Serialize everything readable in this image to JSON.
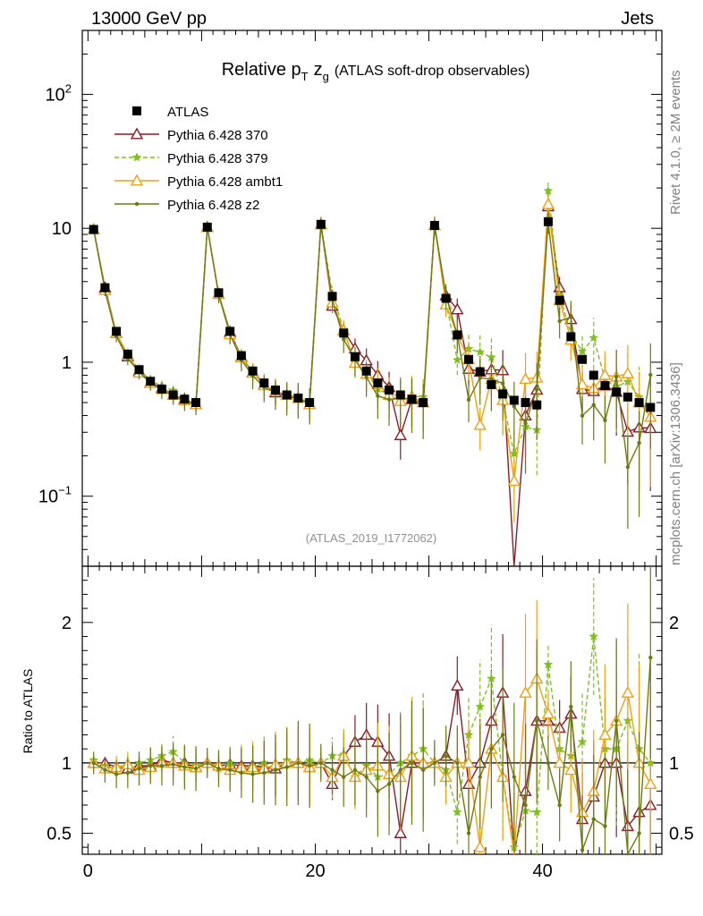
{
  "header": {
    "energy_label": "13000 GeV pp",
    "process_label": "Jets",
    "side_label_top": "Rivet 4.1.0, ≥ 2M events",
    "side_label_bottom": "mcplots.cern.ch [arXiv:1306.3436]"
  },
  "chart_data": {
    "type": "line",
    "title": "Relative p",
    "title_sub_T": "T",
    "title_z": "z",
    "title_sub_g": "g",
    "title_suffix": "(ATLAS soft-drop observables)",
    "analysis_id": "(ATLAS_2019_I1772062)",
    "main_yscale": "log",
    "main_ylim": [
      0.03,
      300
    ],
    "xlim": [
      -0.5,
      50.5
    ],
    "main_yticks": [
      {
        "value": 0.1,
        "label": "10",
        "exp": "−1"
      },
      {
        "value": 1,
        "label": "1",
        "exp": ""
      },
      {
        "value": 10,
        "label": "10",
        "exp": ""
      },
      {
        "value": 100,
        "label": "10",
        "exp": "2"
      }
    ],
    "ratio_ylabel": "Ratio to ATLAS",
    "ratio_ylim": [
      0.35,
      2.4
    ],
    "ratio_yticks": [
      "0.5",
      "1",
      "2"
    ],
    "xticks": [
      "0",
      "20",
      "40"
    ],
    "legend_position": "top-left",
    "x": [
      0.5,
      1.5,
      2.5,
      3.5,
      4.5,
      5.5,
      6.5,
      7.5,
      8.5,
      9.5,
      10.5,
      11.5,
      12.5,
      13.5,
      14.5,
      15.5,
      16.5,
      17.5,
      18.5,
      19.5,
      20.5,
      21.5,
      22.5,
      23.5,
      24.5,
      25.5,
      26.5,
      27.5,
      28.5,
      29.5,
      30.5,
      31.5,
      32.5,
      33.5,
      34.5,
      35.5,
      36.5,
      37.5,
      38.5,
      39.5,
      40.5,
      41.5,
      42.5,
      43.5,
      44.5,
      45.5,
      46.5,
      47.5,
      48.5,
      49.5
    ],
    "data": {
      "name": "ATLAS",
      "values": [
        9.8,
        3.6,
        1.7,
        1.15,
        0.88,
        0.72,
        0.63,
        0.57,
        0.53,
        0.5,
        10.2,
        3.3,
        1.7,
        1.12,
        0.86,
        0.7,
        0.62,
        0.57,
        0.54,
        0.5,
        10.7,
        3.1,
        1.65,
        1.1,
        0.86,
        0.7,
        0.62,
        0.57,
        0.53,
        0.5,
        10.5,
        3.0,
        1.6,
        1.05,
        0.85,
        0.68,
        0.58,
        0.52,
        0.5,
        0.48,
        11.2,
        2.9,
        1.55,
        1.05,
        0.8,
        0.67,
        0.6,
        0.55,
        0.5,
        0.46
      ]
    },
    "series": [
      {
        "name": "Pythia 6.428 370",
        "color": "#8b1a2a",
        "marker": "triangle-open",
        "dashed": false,
        "ratio": [
          1.0,
          1.0,
          0.97,
          0.96,
          0.98,
          0.98,
          1.02,
          1.0,
          1.0,
          0.97,
          1.0,
          0.98,
          0.99,
          0.98,
          0.98,
          0.97,
          0.96,
          1.0,
          1.0,
          0.97,
          1.0,
          0.85,
          1.05,
          1.15,
          1.2,
          1.15,
          1.05,
          0.5,
          1.0,
          1.0,
          1.0,
          1.05,
          1.55,
          0.85,
          1.0,
          1.3,
          1.5,
          0.0,
          0.8,
          1.3,
          1.3,
          1.25,
          1.35,
          0.6,
          0.76,
          1.0,
          1.0,
          0.55,
          0.65,
          0.7
        ]
      },
      {
        "name": "Pythia 6.428 379",
        "color": "#7fbf1f",
        "marker": "star",
        "dashed": true,
        "ratio": [
          1.02,
          0.98,
          0.96,
          0.98,
          1.0,
          1.02,
          1.05,
          1.08,
          1.0,
          0.98,
          1.0,
          0.96,
          1.0,
          0.95,
          0.97,
          1.0,
          0.97,
          1.02,
          1.0,
          1.02,
          1.0,
          1.05,
          1.06,
          0.9,
          0.98,
          0.9,
          0.92,
          1.0,
          1.05,
          1.1,
          1.0,
          0.95,
          0.65,
          1.2,
          1.4,
          1.6,
          0.9,
          0.4,
          0.66,
          0.65,
          1.7,
          1.1,
          1.05,
          1.15,
          1.9,
          1.1,
          1.1,
          1.3,
          1.1,
          1.0
        ]
      },
      {
        "name": "Pythia 6.428 ambt1",
        "color": "#f0a010",
        "marker": "triangle-open",
        "dashed": false,
        "ratio": [
          1.0,
          0.96,
          0.97,
          0.99,
          0.95,
          0.97,
          1.0,
          1.0,
          0.98,
          0.97,
          1.0,
          0.98,
          0.95,
          0.97,
          0.97,
          0.96,
          0.99,
          1.0,
          1.0,
          0.97,
          1.0,
          0.9,
          1.05,
          0.9,
          0.95,
          0.98,
          0.92,
          0.9,
          1.05,
          1.0,
          1.0,
          0.9,
          1.0,
          1.0,
          0.4,
          1.1,
          0.9,
          0.25,
          1.5,
          1.6,
          1.35,
          1.0,
          0.95,
          0.65,
          0.8,
          1.2,
          1.3,
          1.5,
          1.0,
          0.85
        ]
      },
      {
        "name": "Pythia 6.428 z2",
        "color": "#6e7a10",
        "marker": "dot",
        "dashed": false,
        "ratio": [
          1.0,
          0.95,
          0.92,
          0.93,
          0.96,
          0.98,
          0.98,
          0.99,
          0.97,
          0.96,
          1.0,
          0.96,
          0.95,
          0.93,
          0.92,
          0.93,
          0.95,
          0.97,
          1.0,
          0.98,
          1.0,
          0.95,
          0.9,
          0.95,
          0.9,
          0.8,
          0.85,
          0.95,
          1.0,
          0.95,
          1.0,
          1.05,
          1.0,
          0.5,
          0.9,
          1.1,
          1.2,
          0.9,
          0.7,
          1.3,
          1.0,
          0.7,
          1.4,
          0.38,
          0.6,
          0.55,
          1.3,
          0.3,
          0.5,
          1.75
        ]
      }
    ]
  }
}
